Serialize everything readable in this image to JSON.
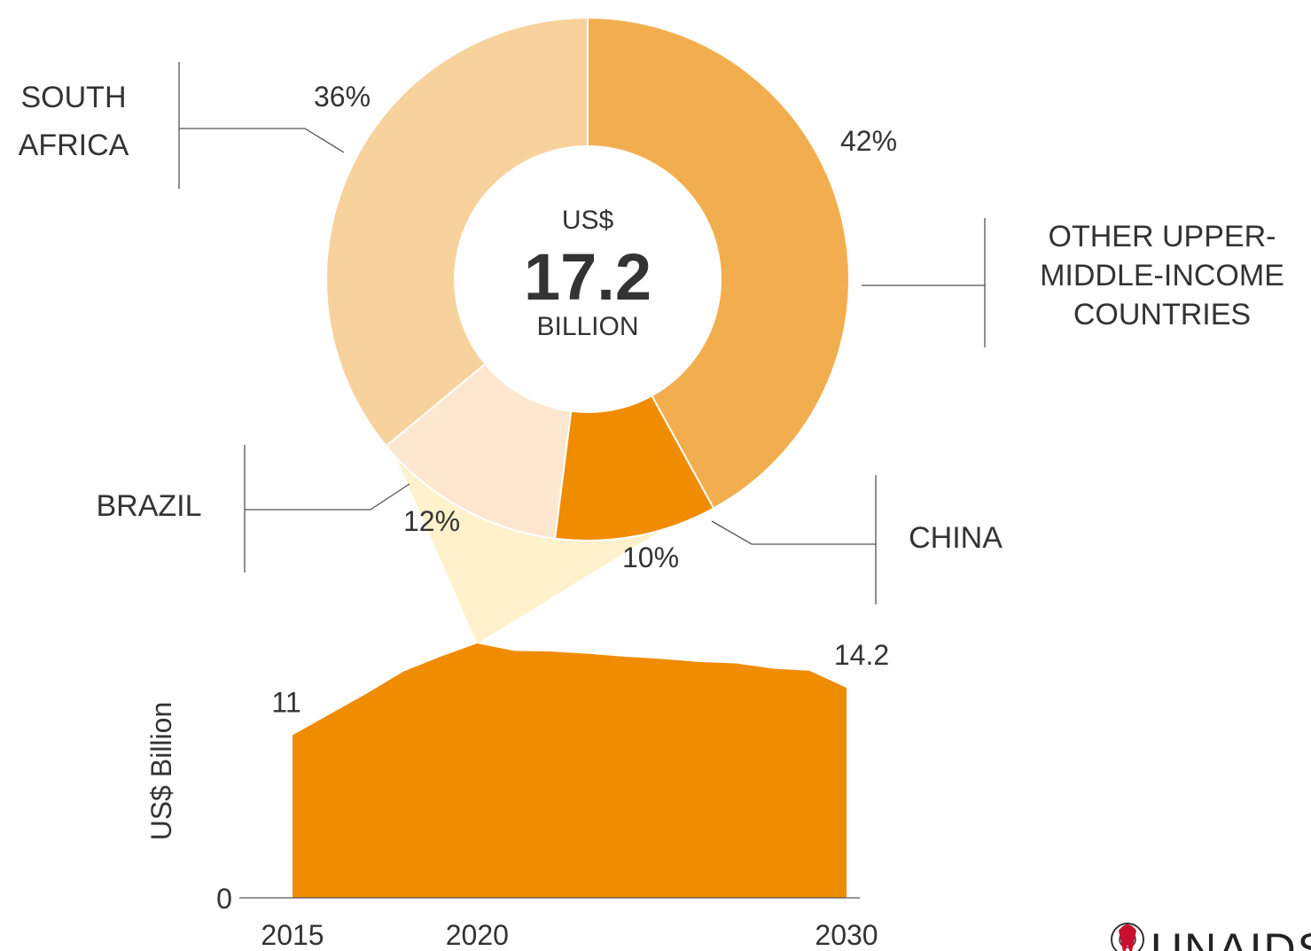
{
  "chart_data": [
    {
      "type": "pie",
      "variant": "donut",
      "center": {
        "top": "US$",
        "value": "17.2",
        "bottom": "BILLION"
      },
      "slices": [
        {
          "label": "OTHER UPPER-MIDDLE-INCOME COUNTRIES",
          "label_lines": [
            "OTHER UPPER-",
            "MIDDLE-INCOME",
            "COUNTRIES"
          ],
          "value": 42,
          "pct_label": "42%",
          "color": "#f2ae4e"
        },
        {
          "label": "CHINA",
          "label_lines": [
            "CHINA"
          ],
          "value": 10,
          "pct_label": "10%",
          "color": "#ef8c00"
        },
        {
          "label": "BRAZIL",
          "label_lines": [
            "BRAZIL"
          ],
          "value": 12,
          "pct_label": "12%",
          "color": "#fde7cf"
        },
        {
          "label": "SOUTH AFRICA",
          "label_lines": [
            "SOUTH",
            "AFRICA"
          ],
          "value": 36,
          "pct_label": "36%",
          "color": "#f8d29c"
        }
      ]
    },
    {
      "type": "area",
      "x": [
        2015,
        2016,
        2017,
        2018,
        2019,
        2020,
        2021,
        2022,
        2023,
        2024,
        2025,
        2026,
        2027,
        2028,
        2029,
        2030
      ],
      "values": [
        11,
        12.4,
        13.8,
        15.3,
        16.3,
        17.2,
        16.7,
        16.65,
        16.5,
        16.3,
        16.15,
        15.95,
        15.85,
        15.5,
        15.35,
        14.2
      ],
      "x_ticks": [
        "2015",
        "2020",
        "2030"
      ],
      "y_ticks": [
        "0"
      ],
      "ylabel": "US$ Billion",
      "annotations": [
        {
          "x": 2015,
          "text": "11"
        },
        {
          "x": 2030,
          "text": "14.2"
        }
      ],
      "color": "#ef8c00",
      "highlight": {
        "x": 2020,
        "color": "#fef1cb"
      }
    }
  ],
  "logo": {
    "text": "UNAIDS"
  }
}
